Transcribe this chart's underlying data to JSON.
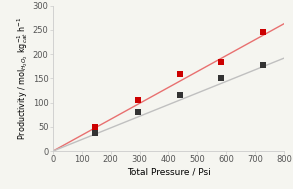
{
  "title": "",
  "xlabel": "Total Pressure / Psi",
  "ylabel": "Productivity / mol$_{H_{2}O_{2}}$ kg$^{-1}_{cat}$ h$^{-1}$",
  "xlim": [
    0,
    800
  ],
  "ylim": [
    0,
    300
  ],
  "xticks": [
    0,
    100,
    200,
    300,
    400,
    500,
    600,
    700,
    800
  ],
  "yticks": [
    0,
    50,
    100,
    150,
    200,
    250,
    300
  ],
  "red_points": [
    [
      145,
      49
    ],
    [
      293,
      105
    ],
    [
      440,
      160
    ],
    [
      580,
      184
    ],
    [
      725,
      246
    ]
  ],
  "black_points": [
    [
      145,
      37
    ],
    [
      293,
      81
    ],
    [
      440,
      115
    ],
    [
      580,
      150
    ],
    [
      725,
      178
    ]
  ],
  "red_line_x": [
    0,
    800
  ],
  "red_line_y": [
    0,
    263
  ],
  "black_line_x": [
    0,
    800
  ],
  "black_line_y": [
    0,
    192
  ],
  "red_color": "#cc0000",
  "black_color": "#333333",
  "line_red_color": "#e87070",
  "line_black_color": "#c0c0c0",
  "marker_size": 20,
  "linewidth": 1.0,
  "background_color": "#f5f5f0",
  "spine_color": "#cccccc",
  "tick_labelsize": 6.0,
  "xlabel_fontsize": 6.5,
  "ylabel_fontsize": 5.8
}
